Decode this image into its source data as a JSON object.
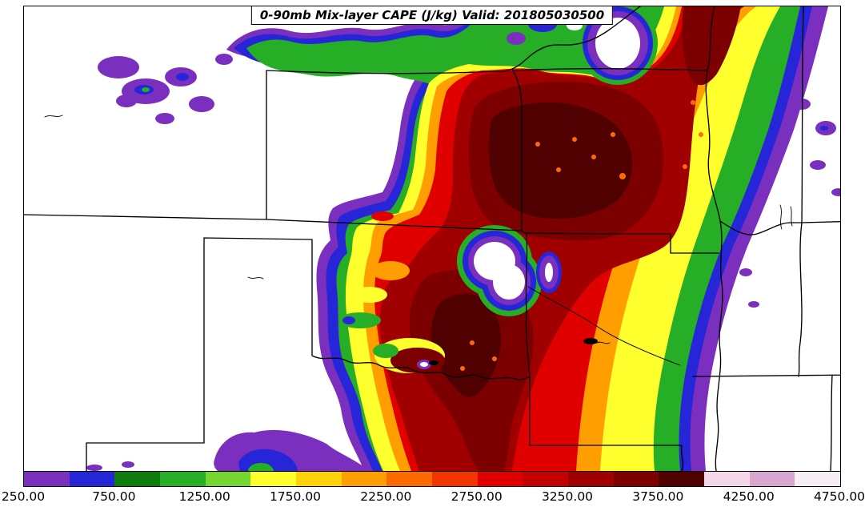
{
  "chart_data": {
    "type": "filled_contour_map",
    "title": "0-90mb Mix-layer CAPE (J/kg) Valid: 201805030500",
    "variable": "0-90mb Mix-layer CAPE",
    "units": "J/kg",
    "valid_time": "201805030500",
    "legend_position": "bottom",
    "colorbar": {
      "orientation": "horizontal",
      "min": 250,
      "max": 4750,
      "segment_interval": 250,
      "tick_interval": 500,
      "tick_values": [
        250,
        750,
        1250,
        1750,
        2250,
        2750,
        3250,
        3750,
        4250,
        4750
      ],
      "tick_labels": [
        "250.00",
        "750.00",
        "1250.00",
        "1750.00",
        "2250.00",
        "2750.00",
        "3250.00",
        "3750.00",
        "4250.00",
        "4750.00"
      ],
      "segment_colors": [
        "#7a2fbe",
        "#2626d8",
        "#0e7d0e",
        "#27ae27",
        "#74d62e",
        "#ffff2e",
        "#ffd20a",
        "#ff9e00",
        "#ff6a00",
        "#f43500",
        "#e10000",
        "#c40000",
        "#a00000",
        "#7c0000",
        "#500000",
        "#f2d8e8",
        "#d9a6cf",
        "#f7eef5"
      ],
      "map_max_filled_level": 3750
    },
    "basemap": {
      "boundary_color": "#000000",
      "background_color": "#ffffff",
      "shows_state_boundaries": true
    }
  }
}
